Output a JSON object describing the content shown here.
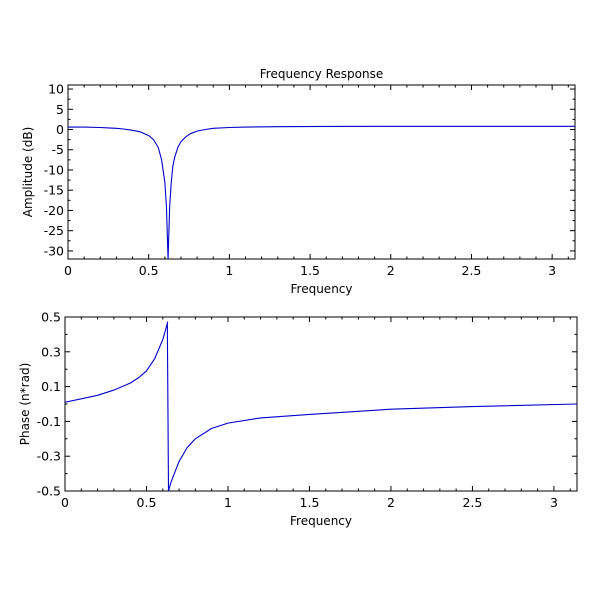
{
  "chart_data": [
    {
      "type": "line",
      "title": "Frequency Response",
      "xlabel": "Frequency",
      "ylabel": "Amplitude (dB)",
      "xlim": [
        0,
        3.1416
      ],
      "ylim": [
        -32,
        11
      ],
      "xticks": [
        0,
        0.5,
        1,
        1.5,
        2,
        2.5,
        3
      ],
      "xtick_labels": [
        "0",
        "0.5",
        "1",
        "1.5",
        "2",
        "2.5",
        "3"
      ],
      "yticks": [
        10,
        5,
        0,
        -5,
        -10,
        -15,
        -20,
        -25,
        -30
      ],
      "ytick_labels": [
        "10",
        "5",
        "0",
        "-5",
        "-10",
        "-15",
        "-20",
        "-25",
        "-30"
      ],
      "grid": false,
      "color": "#0000cc",
      "series": [
        {
          "x": [
            0,
            0.1,
            0.2,
            0.25,
            0.3,
            0.35,
            0.4,
            0.45,
            0.5,
            0.53,
            0.56,
            0.58,
            0.6,
            0.61,
            0.62,
            0.63,
            0.64,
            0.65,
            0.66,
            0.68,
            0.7,
            0.73,
            0.76,
            0.8,
            0.85,
            0.9,
            1.0,
            1.1,
            1.3,
            1.6,
            2.0,
            2.5,
            3.1416
          ],
          "y": [
            0.6,
            0.6,
            0.5,
            0.4,
            0.3,
            0.1,
            -0.2,
            -0.6,
            -1.5,
            -2.5,
            -4.5,
            -7.5,
            -13,
            -19,
            -32,
            -19,
            -13,
            -9,
            -7,
            -4.5,
            -3,
            -1.8,
            -1,
            -0.4,
            0,
            0.3,
            0.5,
            0.6,
            0.7,
            0.75,
            0.8,
            0.8,
            0.8
          ]
        }
      ]
    },
    {
      "type": "line",
      "title": "",
      "xlabel": "Frequency",
      "ylabel": "Phase (n*rad)",
      "xlim": [
        0,
        3.1416
      ],
      "ylim": [
        -0.5,
        0.5
      ],
      "xticks": [
        0,
        0.5,
        1,
        1.5,
        2,
        2.5,
        3
      ],
      "xtick_labels": [
        "0",
        "0.5",
        "1",
        "1.5",
        "2",
        "2.5",
        "3"
      ],
      "yticks": [
        0.5,
        0.3,
        0.1,
        -0.1,
        -0.3,
        -0.5
      ],
      "ytick_labels": [
        "0.5",
        "0.3",
        "0.1",
        "-0.1",
        "-0.3",
        "-0.5"
      ],
      "grid": false,
      "color": "#0000cc",
      "series": [
        {
          "x": [
            0,
            0.1,
            0.2,
            0.3,
            0.4,
            0.45,
            0.5,
            0.55,
            0.6,
            0.63,
            0.628,
            0.635,
            0.65,
            0.7,
            0.75,
            0.8,
            0.9,
            1.0,
            1.2,
            1.5,
            2.0,
            2.5,
            3.1416
          ],
          "y": [
            0.01,
            0.03,
            0.05,
            0.08,
            0.12,
            0.15,
            0.19,
            0.26,
            0.37,
            0.47,
            0.47,
            -0.5,
            -0.45,
            -0.33,
            -0.25,
            -0.2,
            -0.14,
            -0.11,
            -0.08,
            -0.06,
            -0.03,
            -0.015,
            0
          ]
        }
      ]
    }
  ]
}
